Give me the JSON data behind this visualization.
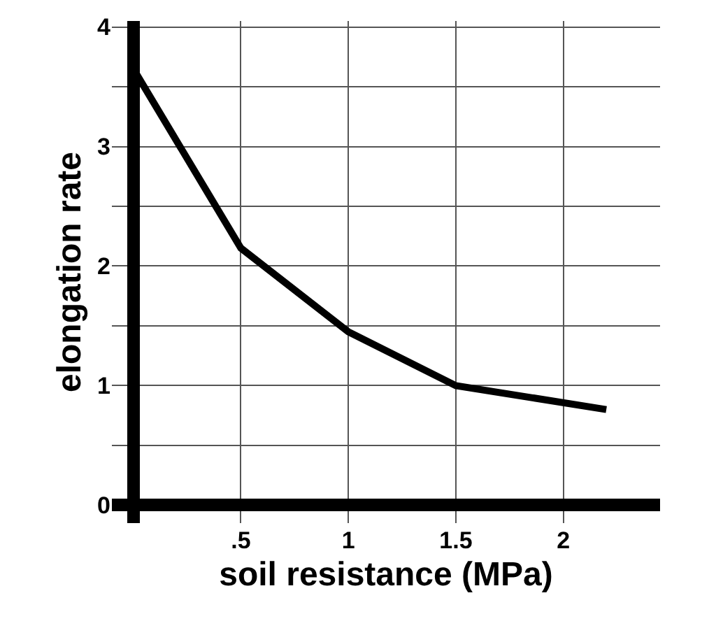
{
  "chart_data": {
    "type": "line",
    "xlabel": "soil resistance (MPa)",
    "ylabel": "elongation rate",
    "x": [
      0,
      0.5,
      1,
      1.5,
      2.2
    ],
    "series": [
      {
        "color": "#000000",
        "values": [
          3.65,
          2.15,
          1.45,
          1.0,
          0.8
        ]
      }
    ],
    "xlim": [
      -0.1,
      2.45
    ],
    "ylim": [
      -0.15,
      4.05
    ],
    "xticks": [
      {
        "value": 0.5,
        "label": ".5"
      },
      1,
      1.5,
      2
    ],
    "yticks": [
      0,
      {
        "value": 0.5,
        "label": null
      },
      1,
      {
        "value": 1.5,
        "label": null
      },
      2,
      {
        "value": 2.5,
        "label": null
      },
      3,
      {
        "value": 3.5,
        "label": null
      },
      4
    ],
    "grid": true,
    "legend": false,
    "marker": "none",
    "line_style": "solid"
  }
}
